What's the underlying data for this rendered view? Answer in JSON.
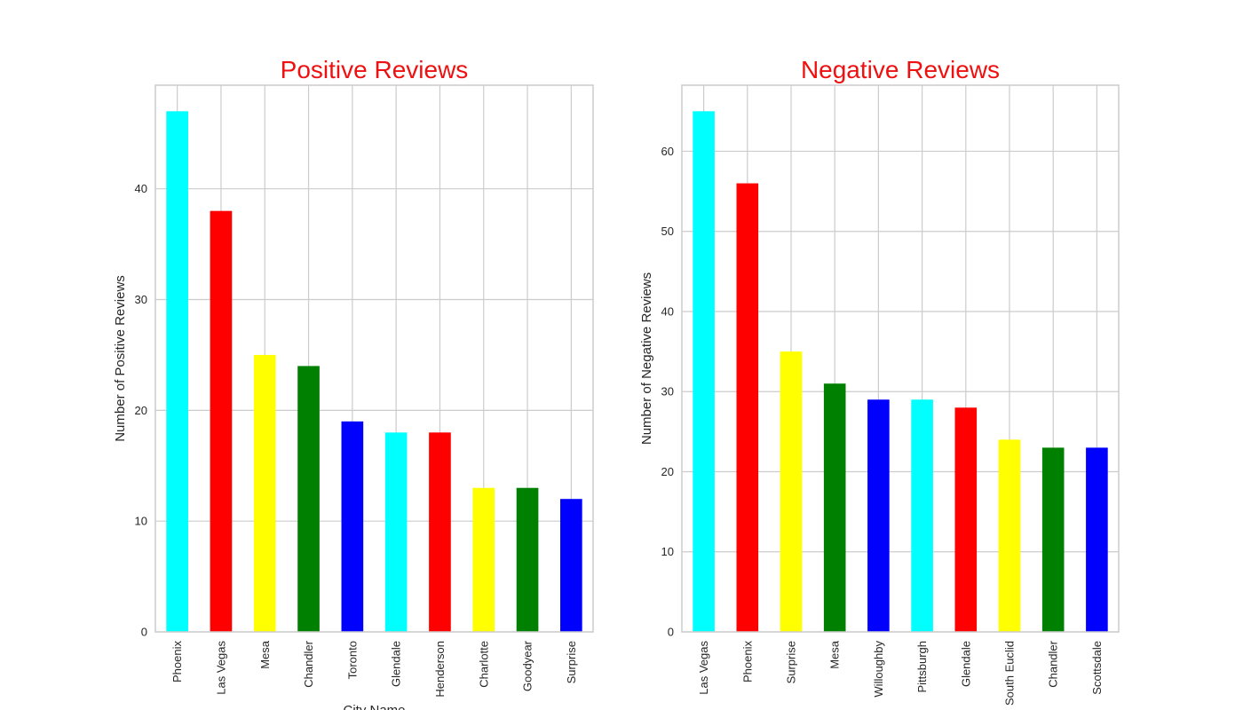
{
  "chart_data": [
    {
      "type": "bar",
      "title": "Positive Reviews",
      "xlabel": "City Name",
      "ylabel": "Number of Positive Reviews",
      "categories": [
        "Phoenix",
        "Las Vegas",
        "Mesa",
        "Chandler",
        "Toronto",
        "Glendale",
        "Henderson",
        "Charlotte",
        "Goodyear",
        "Surprise"
      ],
      "values": [
        47,
        38,
        25,
        24,
        19,
        18,
        18,
        13,
        13,
        12
      ],
      "colors": [
        "#00ffff",
        "#ff0000",
        "#ffff00",
        "#008000",
        "#0000ff",
        "#00ffff",
        "#ff0000",
        "#ffff00",
        "#008000",
        "#0000ff"
      ],
      "ylim": [
        0,
        49.35
      ],
      "yticks": [
        0,
        10,
        20,
        30,
        40
      ],
      "grid": true,
      "legend": "none"
    },
    {
      "type": "bar",
      "title": "Negative Reviews",
      "xlabel": "",
      "ylabel": "Number of Negative Reviews",
      "categories": [
        "Las Vegas",
        "Phoenix",
        "Surprise",
        "Mesa",
        "Willoughby",
        "Pittsburgh",
        "Glendale",
        "South Euclid",
        "Chandler",
        "Scottsdale"
      ],
      "values": [
        65,
        56,
        35,
        31,
        29,
        29,
        28,
        24,
        23,
        23
      ],
      "colors": [
        "#00ffff",
        "#ff0000",
        "#ffff00",
        "#008000",
        "#0000ff",
        "#00ffff",
        "#ff0000",
        "#ffff00",
        "#008000",
        "#0000ff"
      ],
      "ylim": [
        0,
        68.25
      ],
      "yticks": [
        0,
        10,
        20,
        30,
        40,
        50,
        60
      ],
      "grid": true,
      "legend": "none"
    }
  ],
  "style": {
    "title_color": "#ee1111",
    "grid_color": "#cccccc",
    "frame_color": "#cccccc",
    "text_color": "#262626"
  }
}
